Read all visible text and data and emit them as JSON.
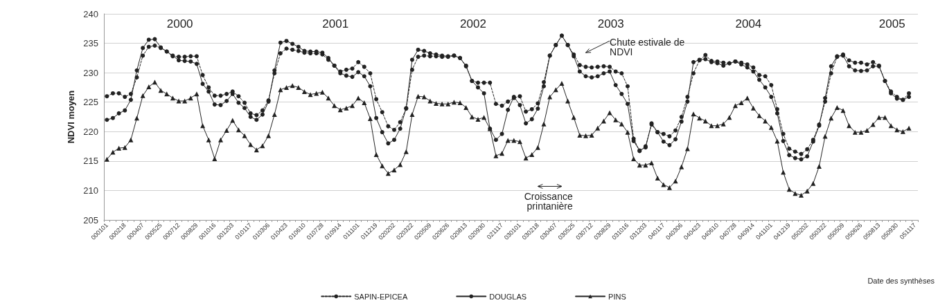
{
  "chart_data": {
    "type": "line",
    "xlabel": "Date des synthèses",
    "ylabel": "NDVI moyen",
    "categories": [
      "000101",
      null,
      null,
      "000218",
      null,
      null,
      "000407",
      null,
      null,
      "000525",
      null,
      null,
      "000712",
      null,
      null,
      "000829",
      null,
      null,
      "001016",
      null,
      null,
      "001203",
      null,
      null,
      "010117",
      null,
      null,
      "010306",
      null,
      null,
      "010423",
      null,
      null,
      "010610",
      null,
      null,
      "010728",
      null,
      null,
      "010914",
      null,
      null,
      "011101",
      null,
      null,
      "011219",
      null,
      null,
      "020202",
      null,
      null,
      "020322",
      null,
      null,
      "020509",
      null,
      null,
      "020626",
      null,
      null,
      "020813",
      null,
      null,
      "020930",
      null,
      null,
      "021117",
      null,
      null,
      "030101",
      null,
      null,
      "030218",
      null,
      null,
      "030407",
      null,
      null,
      "030525",
      null,
      null,
      "030712",
      null,
      null,
      "030829",
      null,
      null,
      "031016",
      null,
      null,
      "031203",
      null,
      null,
      "040117",
      null,
      null,
      "040306",
      null,
      null,
      "040423",
      null,
      null,
      "040610",
      null,
      null,
      "040728",
      null,
      null,
      "040914",
      null,
      null,
      "041101",
      null,
      null,
      "041219",
      null,
      null,
      "050202",
      null,
      null,
      "050322",
      null,
      null,
      "050509",
      null,
      null,
      "050626",
      null,
      null,
      "050813",
      null,
      null,
      "050930",
      null,
      null,
      "051117"
    ],
    "series": [
      {
        "name": "SAPIN-EPICEA",
        "color": "#222222",
        "marker": "circle",
        "line_style": "dashed",
        "values": [
          226,
          226.5,
          226.5,
          225.9,
          226.4,
          229.2,
          232.9,
          234.4,
          234.6,
          234.2,
          233.6,
          232.8,
          232.7,
          232.7,
          232.8,
          232.8,
          229.6,
          227.5,
          226.1,
          226.1,
          226.4,
          226.8,
          226,
          224.9,
          223.1,
          222.8,
          223.6,
          225.3,
          229.9,
          233.3,
          234.1,
          233.9,
          233.7,
          233.4,
          233.3,
          233.3,
          233.1,
          232.2,
          231.2,
          230.2,
          230.5,
          230.7,
          231.8,
          231,
          229.9,
          225.5,
          223.3,
          220.9,
          220.3,
          221.6,
          223.9,
          230.5,
          232.7,
          232.9,
          232.8,
          232.8,
          232.7,
          232.7,
          232.9,
          232.5,
          231.2,
          228.6,
          228.3,
          228.3,
          228.3,
          224.7,
          224.4,
          225.1,
          225.7,
          226,
          223.4,
          223.8,
          224.8,
          228.4,
          232.9,
          234.7,
          236.3,
          234.7,
          233.1,
          231.3,
          231,
          230.9,
          231,
          231.1,
          231,
          230.2,
          229.9,
          227.7,
          218.8,
          216.7,
          217.5,
          221.2,
          219.9,
          219.6,
          219.2,
          220.2,
          222.5,
          225.9,
          229.9,
          232.1,
          233,
          232,
          231.9,
          231.7,
          231.6,
          231.9,
          231.7,
          231.4,
          230.9,
          229.6,
          229.4,
          227.9,
          223.8,
          219.6,
          217.1,
          216.6,
          216.2,
          217,
          218.6,
          221.2,
          225.1,
          229.9,
          232.7,
          233.1,
          232.1,
          231.7,
          231.7,
          231.4,
          231.8,
          231.2,
          228.6,
          226.8,
          225.9,
          225.4,
          226.5,
          null
        ]
      },
      {
        "name": "DOUGLAS",
        "color": "#222222",
        "marker": "circle",
        "line_style": "solid",
        "values": [
          222,
          222.3,
          223.1,
          223.6,
          225.4,
          230.4,
          234.2,
          235.6,
          235.7,
          234.3,
          233.6,
          232.9,
          232.1,
          232,
          231.9,
          231.5,
          228.1,
          226.8,
          224.6,
          224.5,
          225.2,
          226.4,
          224.9,
          224,
          222.5,
          222,
          222.9,
          225.1,
          230.4,
          235.1,
          235.4,
          234.9,
          234.4,
          233.7,
          233.6,
          233.6,
          233.4,
          232.5,
          231.2,
          229.9,
          229.5,
          229.3,
          230.1,
          229.4,
          227.7,
          222.3,
          219.9,
          218,
          218.6,
          220.5,
          224,
          232.2,
          233.9,
          233.7,
          233.3,
          233.1,
          232.9,
          232.8,
          232.9,
          232.5,
          231.1,
          228.6,
          227.5,
          226.5,
          220.5,
          218.6,
          219.6,
          223.7,
          225.9,
          224.5,
          221.4,
          222.1,
          223.9,
          227.7,
          232.9,
          234.7,
          236.3,
          234.7,
          232.8,
          230.2,
          229.4,
          229.2,
          229.4,
          229.9,
          230.2,
          227.9,
          226.4,
          224.7,
          218.4,
          216.8,
          217.3,
          221.4,
          219.9,
          218.3,
          217.7,
          218.7,
          221.7,
          225.1,
          231.8,
          232.2,
          232.3,
          231.8,
          231.6,
          231.2,
          231.6,
          231.9,
          231.4,
          230.9,
          230.2,
          228.8,
          227.5,
          225.9,
          223.1,
          218.4,
          216,
          215.5,
          215.3,
          215.8,
          218.3,
          221,
          225.7,
          231.1,
          232.8,
          232.9,
          231.1,
          230.4,
          230.3,
          230.4,
          231.1,
          231.1,
          228.6,
          226.5,
          225.6,
          225.4,
          225.9,
          null
        ]
      },
      {
        "name": "PINS",
        "color": "#222222",
        "marker": "triangle",
        "line_style": "solid",
        "values": [
          215.3,
          216.5,
          217.2,
          217.3,
          218.6,
          222.3,
          226.1,
          227.6,
          228.4,
          227,
          226.4,
          225.7,
          225.2,
          225.2,
          225.7,
          226.4,
          221,
          218.6,
          215.4,
          218.6,
          220.2,
          221.9,
          220.3,
          219.3,
          217.8,
          216.9,
          217.6,
          219.3,
          222.9,
          227.1,
          227.5,
          227.8,
          227.5,
          226.8,
          226.3,
          226.5,
          226.7,
          225.7,
          224.4,
          223.7,
          224,
          224.4,
          225.7,
          224.9,
          222.2,
          216.1,
          214.2,
          212.9,
          213.5,
          214.4,
          216.6,
          222.9,
          226,
          225.9,
          225.2,
          224.8,
          224.7,
          224.7,
          225,
          224.9,
          224.1,
          222.5,
          222.1,
          222.4,
          220.5,
          215.9,
          216.3,
          218.5,
          218.5,
          218.3,
          215.5,
          216.1,
          217.3,
          221.3,
          225.9,
          227.1,
          228.2,
          225.2,
          222.4,
          219.4,
          219.3,
          219.4,
          220.6,
          221.8,
          223.2,
          222,
          221.3,
          219.9,
          215.4,
          214.3,
          214.3,
          214.7,
          212.1,
          211,
          210.5,
          211.6,
          214,
          217.1,
          223,
          222.3,
          221.8,
          221,
          221,
          221.3,
          222.4,
          224.4,
          224.9,
          225.7,
          224,
          222.7,
          221.8,
          220.7,
          218.4,
          213.1,
          210.2,
          209.5,
          209.2,
          209.9,
          211.2,
          214.1,
          219.2,
          222.3,
          224.1,
          223.6,
          221,
          219.9,
          219.9,
          220.2,
          221.2,
          222.4,
          222.4,
          221,
          220.3,
          220,
          220.6,
          null
        ]
      }
    ],
    "ylim": [
      205,
      240
    ],
    "yticks": [
      205,
      210,
      215,
      220,
      225,
      230,
      235,
      240
    ],
    "grid": "y",
    "legend": "bottom",
    "annotations": [
      "2000",
      "2001",
      "2002",
      "2003",
      "2004",
      "2005",
      "Chute estivale de NDVI",
      "Croissance printanière"
    ]
  }
}
